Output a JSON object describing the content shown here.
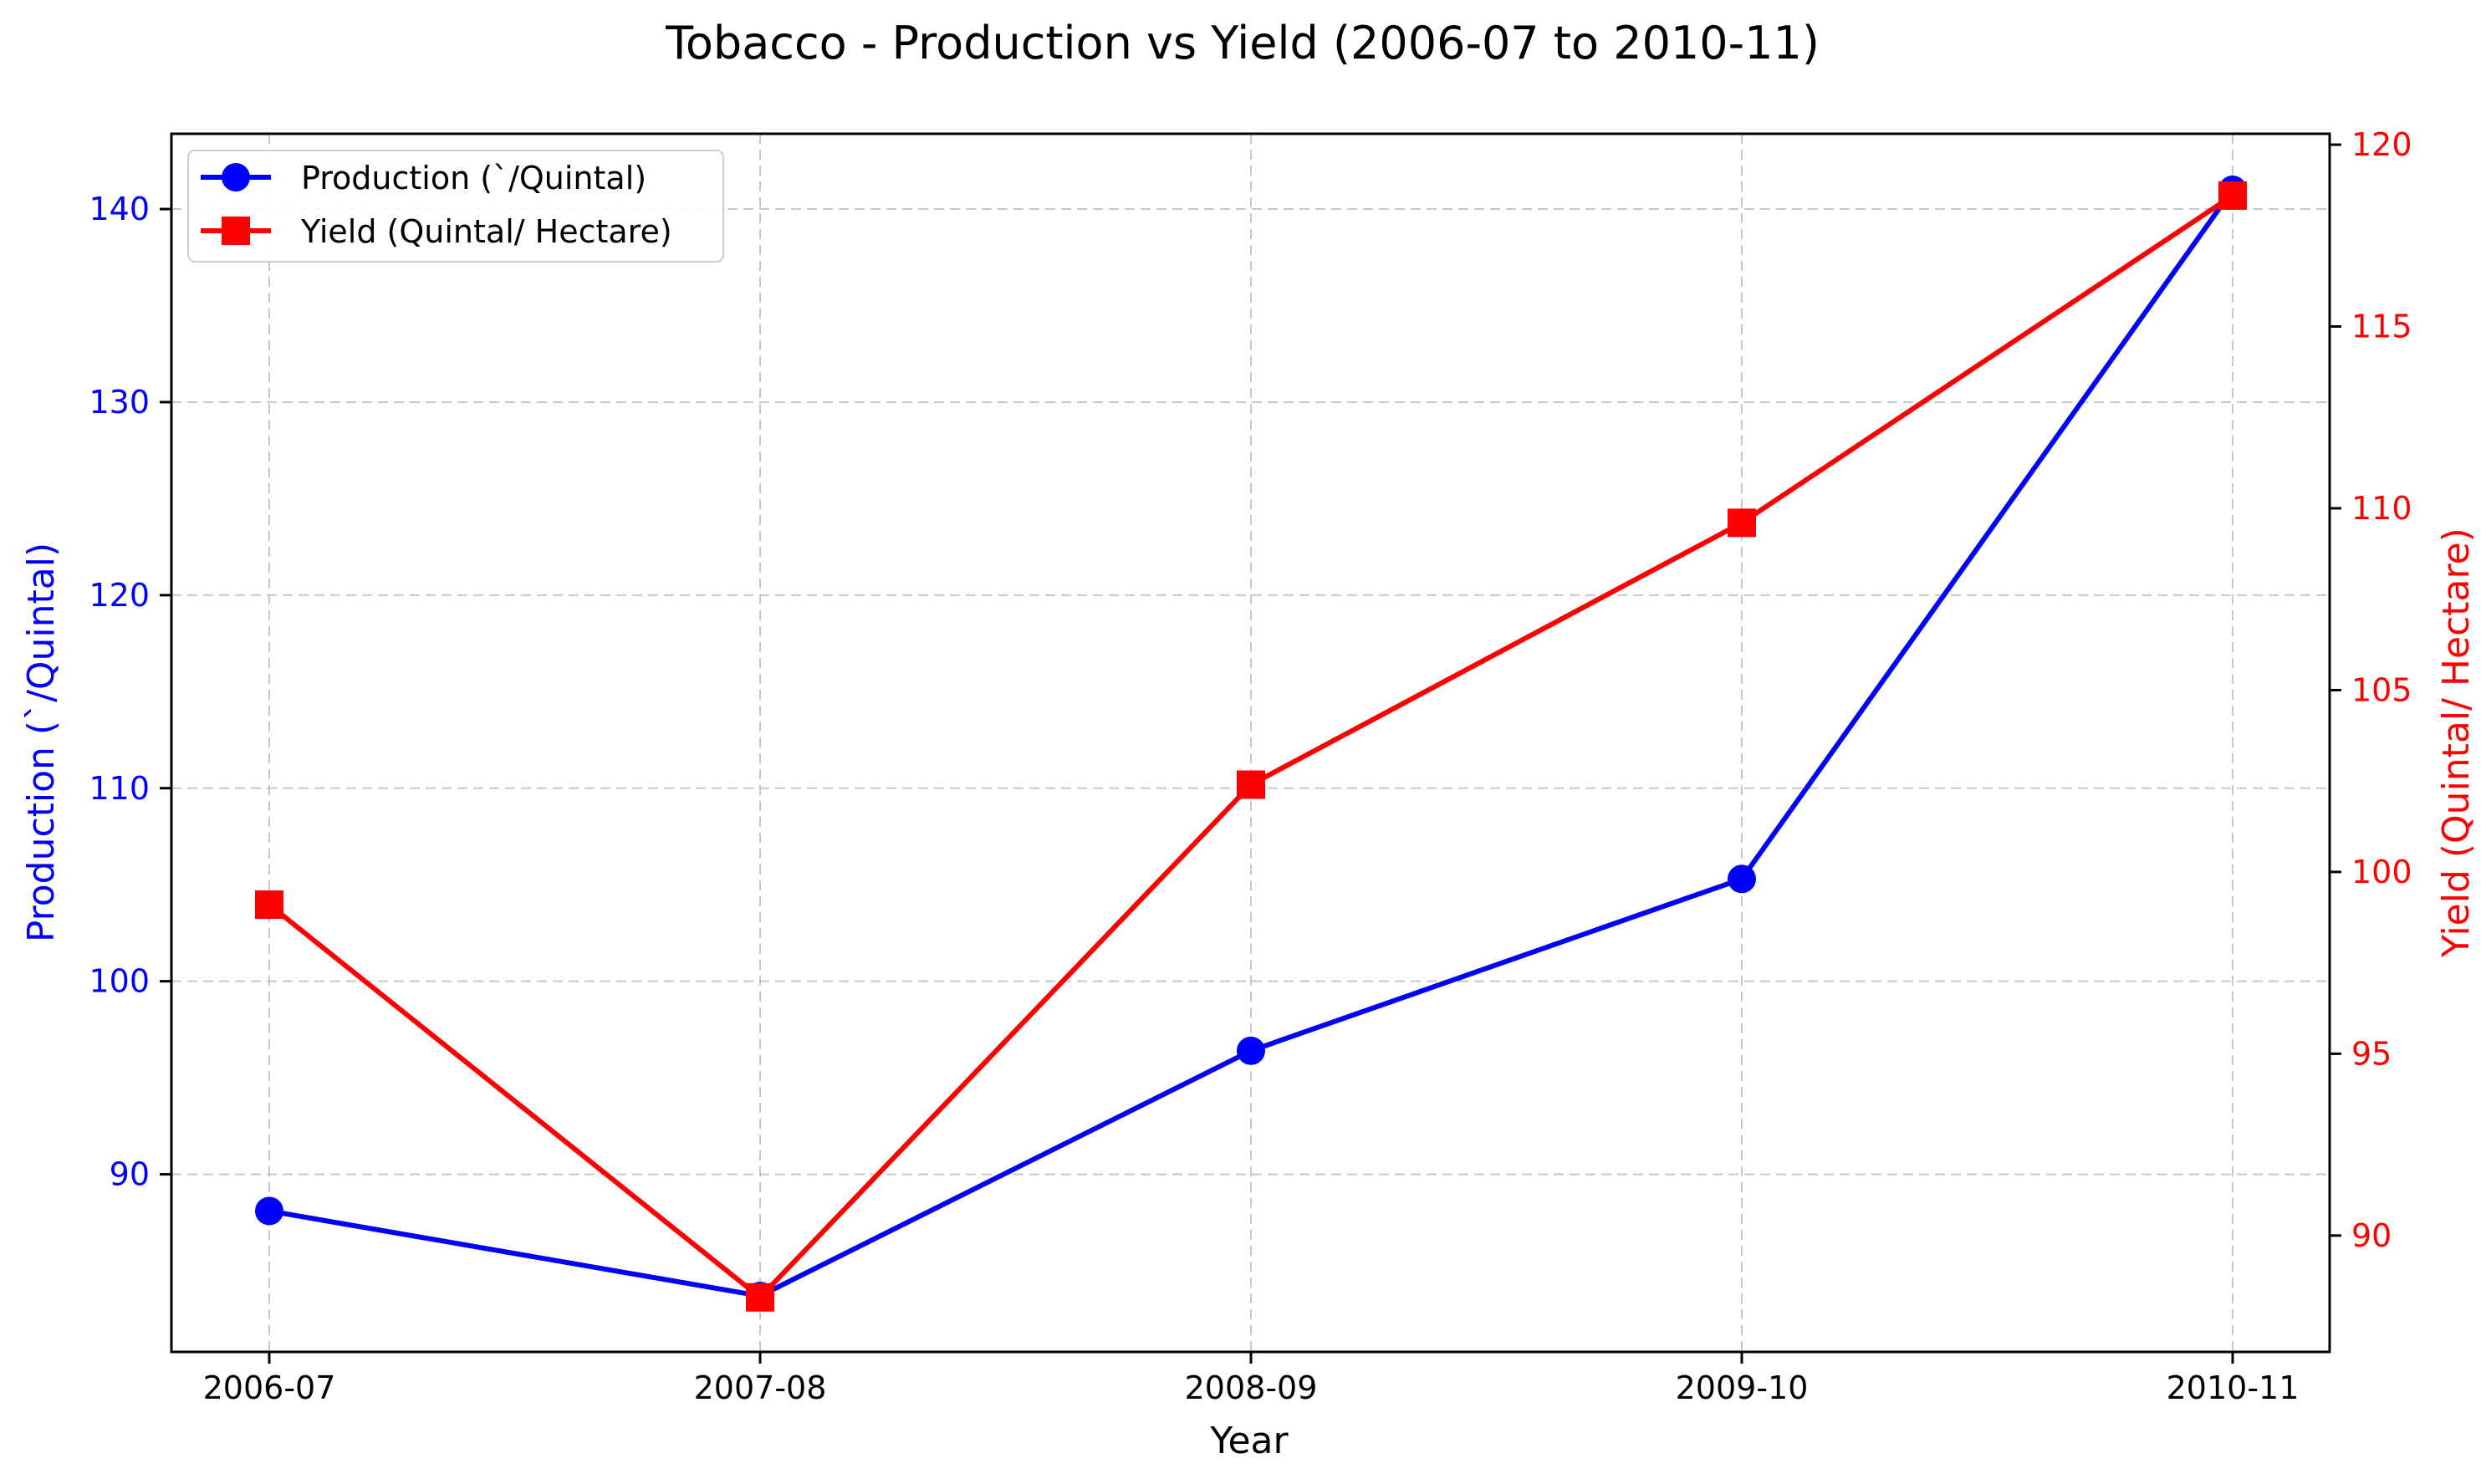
{
  "chart_data": {
    "type": "line",
    "title": "Tobacco - Production vs Yield (2006-07 to 2010-11)",
    "xlabel": "Year",
    "categories": [
      "2006-07",
      "2007-08",
      "2008-09",
      "2009-10",
      "2010-11"
    ],
    "y_left": {
      "label": "Production (`/Quintal)",
      "ticks": [
        90,
        100,
        110,
        120,
        130,
        140
      ],
      "ylim": [
        80.8,
        143.9
      ],
      "color": "#0000ff"
    },
    "y_right": {
      "label": "Yield (Quintal/ Hectare)",
      "ticks": [
        90,
        95,
        100,
        105,
        110,
        115,
        120
      ],
      "ylim": [
        86.8,
        120.3
      ],
      "color": "#ff0000"
    },
    "series": [
      {
        "name": "Production (`/Quintal)",
        "axis": "left",
        "color": "#0000ff",
        "marker": "circle",
        "values": [
          88.1,
          83.7,
          96.4,
          105.3,
          141.0
        ]
      },
      {
        "name": "Yield (Quintal/ Hectare)",
        "axis": "right",
        "color": "#ff0000",
        "marker": "square",
        "values": [
          99.1,
          88.3,
          102.4,
          109.6,
          118.6
        ]
      }
    ],
    "grid": true,
    "legend_position": "upper-left"
  }
}
